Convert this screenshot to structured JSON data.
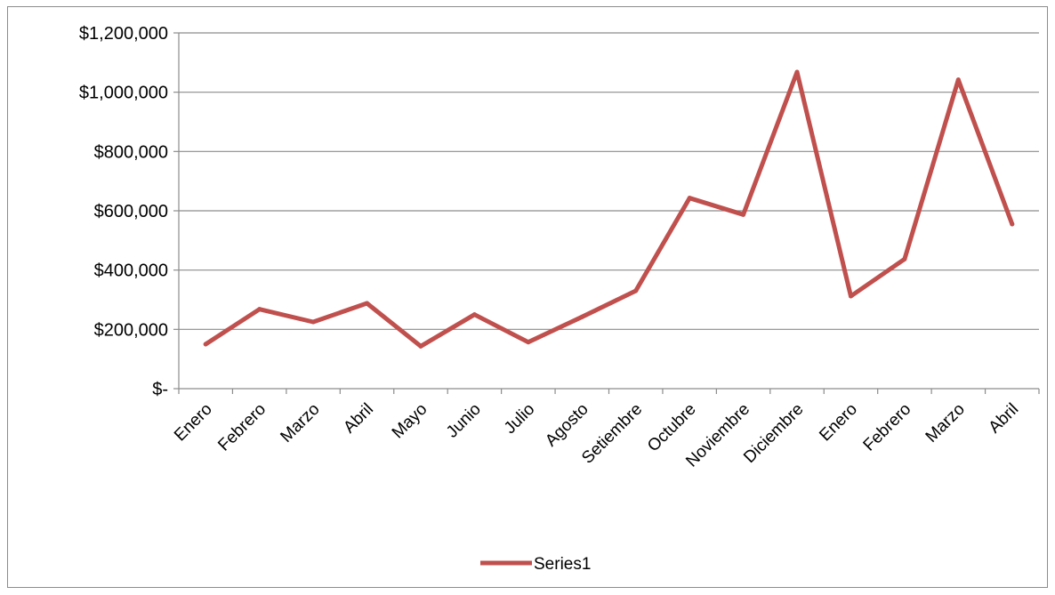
{
  "chart_data": {
    "type": "line",
    "categories": [
      "Enero",
      "Febrero",
      "Marzo",
      "Abril",
      "Mayo",
      "Junio",
      "Julio",
      "Agosto",
      "Setiembre",
      "Octubre",
      "Noviembre",
      "Diciembre",
      "Enero",
      "Febrero",
      "Marzo",
      "Abril"
    ],
    "series": [
      {
        "name": "Series1",
        "color": "#c0504d",
        "values": [
          150000,
          268000,
          225000,
          288000,
          143000,
          250000,
          157000,
          242000,
          330000,
          643000,
          587000,
          1068000,
          312000,
          437000,
          1042000,
          555000
        ]
      }
    ],
    "yticks": [
      {
        "value": 0,
        "label": "$-"
      },
      {
        "value": 200000,
        "label": "$200,000"
      },
      {
        "value": 400000,
        "label": "$400,000"
      },
      {
        "value": 600000,
        "label": "$600,000"
      },
      {
        "value": 800000,
        "label": "$800,000"
      },
      {
        "value": 1000000,
        "label": "$1,000,000"
      },
      {
        "value": 1200000,
        "label": "$1,200,000"
      }
    ],
    "ylim": [
      0,
      1200000
    ],
    "grid": true,
    "legend": "bottom",
    "title": "",
    "xlabel": "",
    "ylabel": ""
  }
}
